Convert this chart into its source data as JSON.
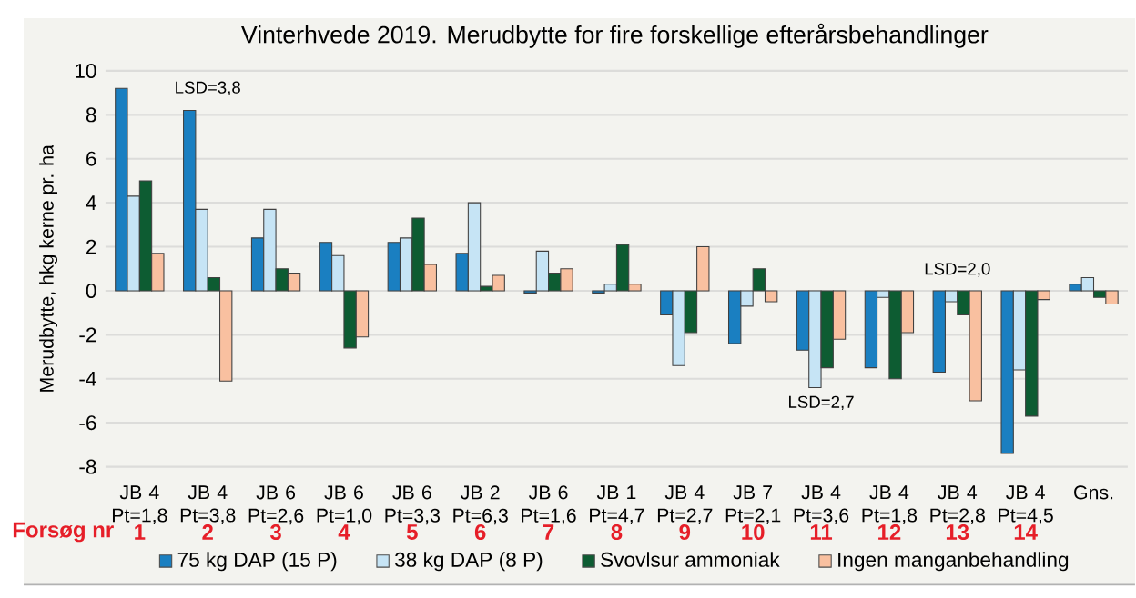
{
  "chart_data": {
    "type": "bar",
    "title": "Vinterhvede 2019. Merudbytte for fire forskellige efterårsbehandlinger",
    "ylabel": "Merudbytte, hkg kerne pr. ha",
    "categories": [
      "JB 4 Pt=1,8",
      "JB 4 Pt=3,8",
      "JB 6 Pt=2,6",
      "JB 6 Pt=1,0",
      "JB 6 Pt=3,3",
      "JB 2 Pt=6,3",
      "JB 6 Pt=1,6",
      "JB 1 Pt=4,7",
      "JB 4 Pt=2,7",
      "JB 7 Pt=2,1",
      "JB 4 Pt=3,6",
      "JB 4 Pt=1,8",
      "JB 4 Pt=2,8",
      "JB 4 Pt=4,5",
      "Gns."
    ],
    "series": [
      {
        "name": "75 kg DAP (15 P)",
        "color": "#1a7fc1",
        "values": [
          9.2,
          8.2,
          2.4,
          2.2,
          2.2,
          1.7,
          -0.1,
          -0.1,
          -1.1,
          -2.4,
          -2.7,
          -3.5,
          -3.7,
          -7.4,
          0.3
        ]
      },
      {
        "name": "38 kg DAP (8 P)",
        "color": "#c6e4f5",
        "values": [
          4.3,
          3.7,
          3.7,
          1.6,
          2.4,
          4.0,
          1.8,
          0.3,
          -3.4,
          -0.7,
          -4.4,
          -0.3,
          -0.5,
          -3.6,
          0.6
        ]
      },
      {
        "name": "Svovlsur ammoniak",
        "color": "#0d5c32",
        "values": [
          5.0,
          0.6,
          1.0,
          -2.6,
          3.3,
          0.2,
          0.8,
          2.1,
          -1.9,
          1.0,
          -3.5,
          -4.0,
          -1.1,
          -5.7,
          -0.3
        ]
      },
      {
        "name": "Ingen manganbehandling",
        "color": "#f9c0a0",
        "values": [
          1.7,
          -4.1,
          0.8,
          -2.1,
          1.2,
          0.7,
          1.0,
          0.3,
          2.0,
          -0.5,
          -2.2,
          -1.9,
          -5.0,
          -0.4,
          -0.6
        ]
      }
    ],
    "ylim": [
      -8,
      10
    ],
    "yticks": [
      -8,
      -6,
      -4,
      -2,
      0,
      2,
      4,
      6,
      8,
      10
    ],
    "grid": "y",
    "legend": "bottom",
    "annotations": [
      "Forsøg nr",
      "1",
      "2",
      "3",
      "4",
      "5",
      "6",
      "7",
      "8",
      "9",
      "10",
      "11",
      "12",
      "13",
      "14",
      "LSD=3,8",
      "LSD=2,7",
      "LSD=2,0"
    ]
  }
}
